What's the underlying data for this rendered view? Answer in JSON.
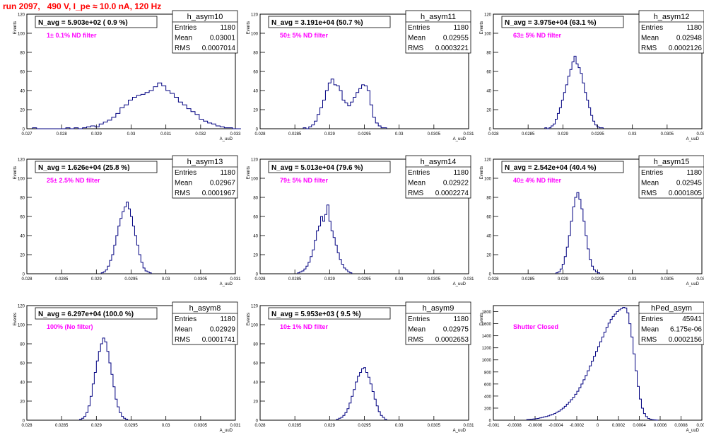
{
  "page": {
    "header": "run 2097,   490 V, I_pe ≈ 10.0 nA, 120 Hz",
    "header_color": "#ff0000"
  },
  "colors": {
    "histogram_line": "#000080",
    "annotation": "#ff00ff",
    "axis": "#000000"
  },
  "stat_labels": {
    "entries": "Entries",
    "mean": "Mean",
    "rms": "RMS"
  },
  "chart_data": [
    {
      "type": "bar",
      "name": "h_asym10",
      "title": "N_avg = 5.903e+02 ( 0.9 %)",
      "annotation": "1± 0.1% ND filter",
      "stats": {
        "entries": "1180",
        "mean": "0.03001",
        "rms": "0.0007014"
      },
      "ylabel": "Events",
      "xlabel": "A_uuD",
      "xlim": [
        0.027,
        0.033
      ],
      "ylim": [
        0,
        120
      ],
      "xticks": [
        "0.027",
        "0.028",
        "0.029",
        "0.03",
        "0.031",
        "0.032",
        "0.033"
      ],
      "yticks": [
        "0",
        "20",
        "40",
        "60",
        "80",
        "100",
        "120"
      ],
      "bin_start": 0.02716,
      "bin_width": 0.00012,
      "values": [
        1,
        0,
        0,
        0,
        0,
        0,
        0,
        0,
        1,
        0,
        1,
        0,
        1,
        2,
        3,
        2,
        5,
        7,
        9,
        12,
        16,
        22,
        25,
        30,
        33,
        35,
        36,
        38,
        40,
        44,
        48,
        45,
        40,
        37,
        33,
        28,
        25,
        21,
        18,
        15,
        10,
        8,
        6,
        5,
        3,
        2,
        1,
        1,
        0,
        0
      ]
    },
    {
      "type": "bar",
      "name": "h_asym11",
      "title": "N_avg = 3.191e+04 (50.7 %)",
      "annotation": "50± 5% ND filter",
      "stats": {
        "entries": "1180",
        "mean": "0.02955",
        "rms": "0.0003221"
      },
      "ylabel": "Events",
      "xlabel": "A_uuD",
      "xlim": [
        0.028,
        0.031
      ],
      "ylim": [
        0,
        120
      ],
      "xticks": [
        "0.028",
        "0.0285",
        "0.029",
        "0.0295",
        "0.03",
        "0.0305",
        "0.031"
      ],
      "yticks": [
        "0",
        "20",
        "40",
        "60",
        "80",
        "100",
        "120"
      ],
      "bin_start": 0.02862,
      "bin_width": 4e-05,
      "values": [
        1,
        0,
        2,
        4,
        8,
        15,
        22,
        30,
        40,
        48,
        52,
        46,
        45,
        40,
        30,
        27,
        24,
        28,
        33,
        38,
        42,
        46,
        45,
        40,
        25,
        12,
        6,
        3,
        1,
        1
      ]
    },
    {
      "type": "bar",
      "name": "h_asym12",
      "title": "N_avg = 3.975e+04 (63.1 %)",
      "annotation": "63± 5% ND filter",
      "stats": {
        "entries": "1180",
        "mean": "0.02948",
        "rms": "0.0002126"
      },
      "ylabel": "Events",
      "xlabel": "A_uuD",
      "xlim": [
        0.028,
        0.031
      ],
      "ylim": [
        0,
        120
      ],
      "xticks": [
        "0.028",
        "0.0285",
        "0.029",
        "0.0295",
        "0.03",
        "0.0305",
        "0.031"
      ],
      "yticks": [
        "0",
        "20",
        "40",
        "60",
        "80",
        "100",
        "120"
      ],
      "bin_start": 0.02874,
      "bin_width": 3e-05,
      "values": [
        1,
        0,
        1,
        3,
        5,
        10,
        16,
        22,
        30,
        38,
        46,
        55,
        62,
        70,
        76,
        68,
        64,
        58,
        48,
        38,
        30,
        22,
        14,
        8,
        4,
        2,
        1,
        1
      ]
    },
    {
      "type": "bar",
      "name": "h_asym13",
      "title": "N_avg = 1.626e+04 (25.8 %)",
      "annotation": "25± 2.5% ND filter",
      "stats": {
        "entries": "1180",
        "mean": "0.02967",
        "rms": "0.0001967"
      },
      "ylabel": "Events",
      "xlabel": "A_uuD",
      "xlim": [
        0.028,
        0.031
      ],
      "ylim": [
        0,
        120
      ],
      "xticks": [
        "0.028",
        "0.0285",
        "0.029",
        "0.0295",
        "0.03",
        "0.0305",
        "0.031"
      ],
      "yticks": [
        "0",
        "20",
        "40",
        "60",
        "80",
        "100",
        "120"
      ],
      "bin_start": 0.02907,
      "bin_width": 3e-05,
      "values": [
        1,
        2,
        4,
        8,
        14,
        20,
        30,
        40,
        50,
        58,
        65,
        70,
        75,
        68,
        60,
        50,
        40,
        30,
        20,
        12,
        6,
        3,
        2,
        1
      ]
    },
    {
      "type": "bar",
      "name": "h_asym14",
      "title": "N_avg = 5.013e+04 (79.6 %)",
      "annotation": "79± 5% ND filter",
      "stats": {
        "entries": "1180",
        "mean": "0.02922",
        "rms": "0.0002274"
      },
      "ylabel": "Events",
      "xlabel": "A_uuD",
      "xlim": [
        0.028,
        0.031
      ],
      "ylim": [
        0,
        120
      ],
      "xticks": [
        "0.028",
        "0.0285",
        "0.029",
        "0.0295",
        "0.03",
        "0.0305",
        "0.031"
      ],
      "yticks": [
        "0",
        "20",
        "40",
        "60",
        "80",
        "100",
        "120"
      ],
      "bin_start": 0.02854,
      "bin_width": 3e-05,
      "values": [
        1,
        2,
        3,
        5,
        8,
        12,
        18,
        25,
        35,
        45,
        50,
        60,
        55,
        62,
        72,
        55,
        45,
        38,
        30,
        22,
        15,
        10,
        6,
        4,
        2,
        1
      ]
    },
    {
      "type": "bar",
      "name": "h_asym15",
      "title": "N_avg = 2.542e+04 (40.4 %)",
      "annotation": "40± 4% ND filter",
      "stats": {
        "entries": "1180",
        "mean": "0.02945",
        "rms": "0.0001805"
      },
      "ylabel": "Events",
      "xlabel": "A_uuD",
      "xlim": [
        0.028,
        0.031
      ],
      "ylim": [
        0,
        120
      ],
      "xticks": [
        "0.028",
        "0.0285",
        "0.029",
        "0.0295",
        "0.03",
        "0.0305",
        "0.031"
      ],
      "yticks": [
        "0",
        "20",
        "40",
        "60",
        "80",
        "100",
        "120"
      ],
      "bin_start": 0.0289,
      "bin_width": 3e-05,
      "values": [
        1,
        2,
        5,
        10,
        18,
        28,
        40,
        55,
        70,
        80,
        85,
        78,
        68,
        55,
        40,
        26,
        15,
        8,
        4,
        2,
        1
      ]
    },
    {
      "type": "bar",
      "name": "h_asym8",
      "title": "N_avg = 6.297e+04 (100.0 %)",
      "annotation": "100% (No filter)",
      "stats": {
        "entries": "1180",
        "mean": "0.02929",
        "rms": "0.0001741"
      },
      "ylabel": "Events",
      "xlabel": "A_uuD",
      "xlim": [
        0.028,
        0.031
      ],
      "ylim": [
        0,
        120
      ],
      "xticks": [
        "0.028",
        "0.0285",
        "0.029",
        "0.0295",
        "0.03",
        "0.0305",
        "0.031"
      ],
      "yticks": [
        "0",
        "20",
        "40",
        "60",
        "80",
        "100",
        "120"
      ],
      "bin_start": 0.02876,
      "bin_width": 3e-05,
      "values": [
        1,
        2,
        4,
        8,
        15,
        25,
        38,
        50,
        62,
        72,
        80,
        86,
        82,
        72,
        60,
        48,
        35,
        22,
        14,
        8,
        4,
        2,
        1
      ]
    },
    {
      "type": "bar",
      "name": "h_asym9",
      "title": "N_avg = 5.953e+03 ( 9.5 %)",
      "annotation": "10± 1% ND filter",
      "stats": {
        "entries": "1180",
        "mean": "0.02975",
        "rms": "0.0002653"
      },
      "ylabel": "Events",
      "xlabel": "A_uuD",
      "xlim": [
        0.028,
        0.031
      ],
      "ylim": [
        0,
        120
      ],
      "xticks": [
        "0.028",
        "0.0285",
        "0.029",
        "0.0295",
        "0.03",
        "0.0305",
        "0.031"
      ],
      "yticks": [
        "0",
        "20",
        "40",
        "60",
        "80",
        "100",
        "120"
      ],
      "bin_start": 0.0291,
      "bin_width": 3e-05,
      "values": [
        1,
        2,
        3,
        5,
        8,
        12,
        18,
        25,
        32,
        40,
        46,
        50,
        54,
        55,
        50,
        45,
        38,
        30,
        22,
        15,
        9,
        5,
        3,
        1
      ]
    },
    {
      "type": "bar",
      "name": "hPed_asym",
      "title": "",
      "annotation": "Shutter Closed",
      "stats": {
        "entries": "45941",
        "mean": "6.175e-06",
        "rms": "0.0002156"
      },
      "ylabel": "Events",
      "xlabel": "A_uuD",
      "xlim": [
        -0.001,
        0.001
      ],
      "ylim": [
        0,
        1900
      ],
      "xticks": [
        "-0.001",
        "-0.0008",
        "-0.0006",
        "-0.0004",
        "-0.0002",
        "0",
        "0.0002",
        "0.0004",
        "0.0006",
        "0.0008",
        "0.001"
      ],
      "yticks": [
        "0",
        "200",
        "400",
        "600",
        "800",
        "1000",
        "1200",
        "1400",
        "1600",
        "1800"
      ],
      "bin_start": -0.00068,
      "bin_width": 2e-05,
      "values": [
        10,
        12,
        15,
        20,
        25,
        30,
        38,
        45,
        55,
        62,
        72,
        85,
        95,
        110,
        130,
        150,
        175,
        200,
        230,
        265,
        300,
        340,
        380,
        430,
        480,
        540,
        600,
        670,
        740,
        820,
        900,
        980,
        1060,
        1140,
        1220,
        1300,
        1380,
        1460,
        1540,
        1610,
        1670,
        1720,
        1760,
        1800,
        1830,
        1850,
        1870,
        1860,
        1780,
        1600,
        1380,
        1100,
        820,
        560,
        350,
        200,
        110,
        60,
        30,
        15,
        8,
        4,
        2
      ]
    }
  ]
}
